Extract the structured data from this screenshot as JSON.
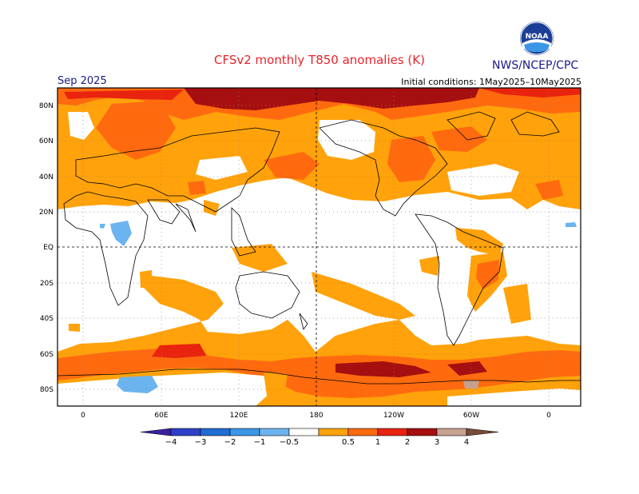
{
  "title": "CFSv2 monthly T850 anomalies (K)",
  "agency": "NWS/NCEP/CPC",
  "logo_text": "NOAA",
  "valid_month": "Sep 2025",
  "initial_conditions": "Initial conditions: 1May2025–10May2025",
  "lat_labels": [
    "80N",
    "60N",
    "40N",
    "20N",
    "EQ",
    "20S",
    "40S",
    "60S",
    "80S"
  ],
  "lon_labels": [
    "0",
    "60E",
    "120E",
    "180",
    "120W",
    "60W",
    "0"
  ],
  "colorbar": {
    "labels": [
      "−4",
      "−3",
      "−2",
      "−1",
      "−0.5",
      "0.5",
      "1",
      "2",
      "3",
      "4"
    ],
    "colors": [
      "#3b1fa3",
      "#2f3fc8",
      "#1f6dd2",
      "#3c96e6",
      "#6cb4ef",
      "#ffffff",
      "#ffa20b",
      "#ff6a0f",
      "#e8230e",
      "#a50f0f",
      "#c8a090",
      "#7a4a3a"
    ]
  },
  "anomaly_colors": {
    "zero": "#ffffff",
    "pos_0_5": "#ffa20b",
    "pos_1": "#ff6a0f",
    "pos_2": "#e8230e",
    "pos_3": "#a50f0f",
    "neg_0_5": "#6cb4ef"
  }
}
